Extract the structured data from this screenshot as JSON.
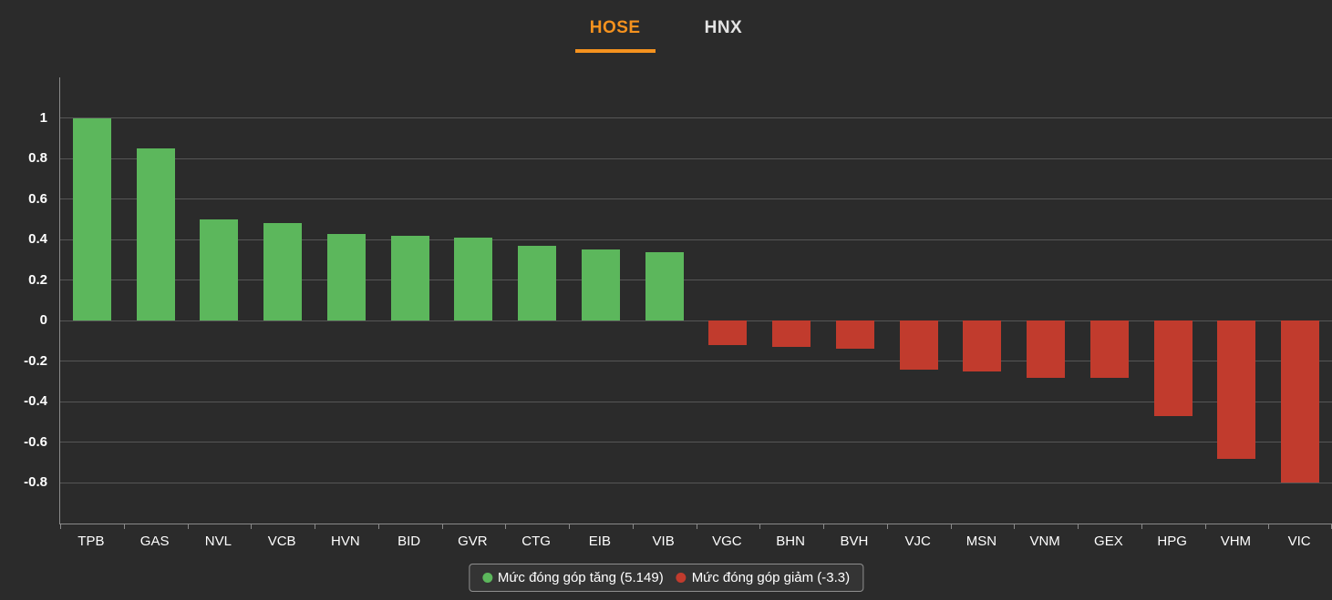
{
  "tabs": [
    {
      "label": "HOSE",
      "active": true
    },
    {
      "label": "HNX",
      "active": false
    }
  ],
  "chart_data": {
    "type": "bar",
    "title": "",
    "xlabel": "",
    "ylabel": "",
    "categories": [
      "TPB",
      "GAS",
      "NVL",
      "VCB",
      "HVN",
      "BID",
      "GVR",
      "CTG",
      "EIB",
      "VIB",
      "VGC",
      "BHN",
      "BVH",
      "VJC",
      "MSN",
      "VNM",
      "GEX",
      "HPG",
      "VHM",
      "VIC"
    ],
    "values": [
      1.0,
      0.85,
      0.5,
      0.48,
      0.43,
      0.42,
      0.41,
      0.37,
      0.35,
      0.34,
      -0.12,
      -0.13,
      -0.14,
      -0.24,
      -0.25,
      -0.28,
      -0.28,
      -0.47,
      -0.68,
      -0.8
    ],
    "y_ticks": [
      1,
      0.8,
      0.6,
      0.4,
      0.2,
      0,
      -0.2,
      -0.4,
      -0.6,
      -0.8
    ],
    "ylim": [
      -1,
      1.2
    ],
    "grid": true,
    "positive_color": "#5cb75c",
    "negative_color": "#c13b2d",
    "legend_position": "bottom",
    "legend": [
      {
        "label": "Mức đóng góp tăng (5.149)",
        "color": "#5cb75c"
      },
      {
        "label": "Mức đóng góp giảm (-3.3)",
        "color": "#c13b2d"
      }
    ]
  },
  "colors": {
    "background": "#2b2b2b",
    "accent_orange": "#f5921e",
    "axis": "#8a8a8a",
    "gridline": "#565656",
    "text": "#ffffff"
  }
}
